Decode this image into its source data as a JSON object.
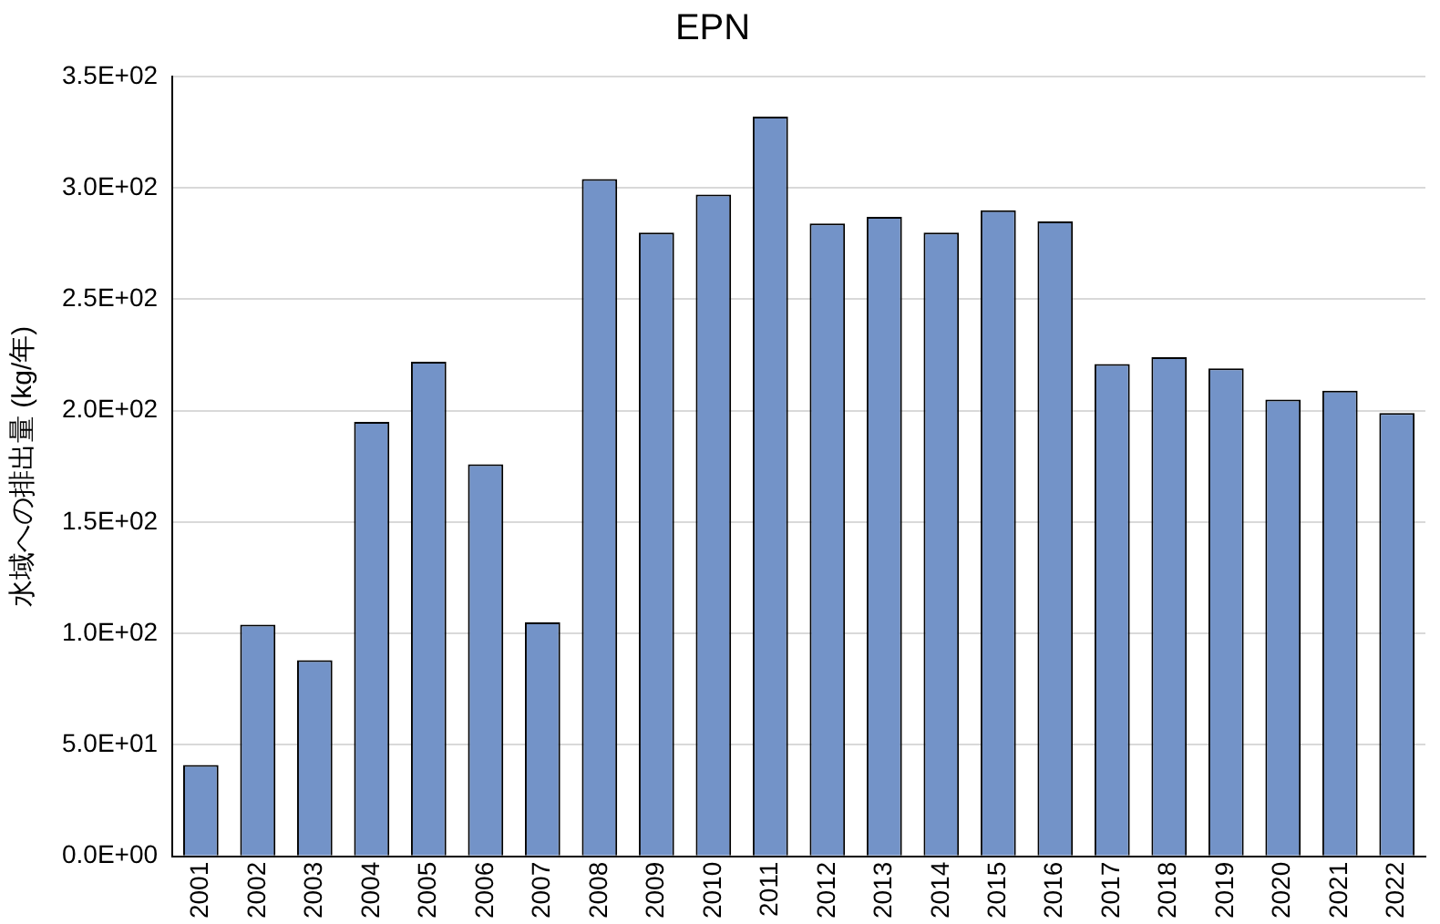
{
  "chart_data": {
    "type": "bar",
    "title": "EPN",
    "ylabel": "水域への排出量 (kg/年)",
    "categories": [
      "2001",
      "2002",
      "2003",
      "2004",
      "2005",
      "2006",
      "2007",
      "2008",
      "2009",
      "2010",
      "2011",
      "2012",
      "2013",
      "2014",
      "2015",
      "2016",
      "2017",
      "2018",
      "2019",
      "2020",
      "2021",
      "2022"
    ],
    "values": [
      41,
      104,
      88,
      195,
      222,
      176,
      105,
      304,
      280,
      297,
      332,
      284,
      287,
      280,
      290,
      285,
      221,
      224,
      219,
      205,
      209,
      199
    ],
    "color": "#7393c8",
    "ylim": [
      0,
      350
    ],
    "yticks": [
      {
        "value": 0,
        "label": "0.0E+00"
      },
      {
        "value": 50,
        "label": "5.0E+01"
      },
      {
        "value": 100,
        "label": "1.0E+02"
      },
      {
        "value": 150,
        "label": "1.5E+02"
      },
      {
        "value": 200,
        "label": "2.0E+02"
      },
      {
        "value": 250,
        "label": "2.5E+02"
      },
      {
        "value": 300,
        "label": "3.0E+02"
      },
      {
        "value": 350,
        "label": "3.5E+02"
      }
    ],
    "grid": "y"
  }
}
